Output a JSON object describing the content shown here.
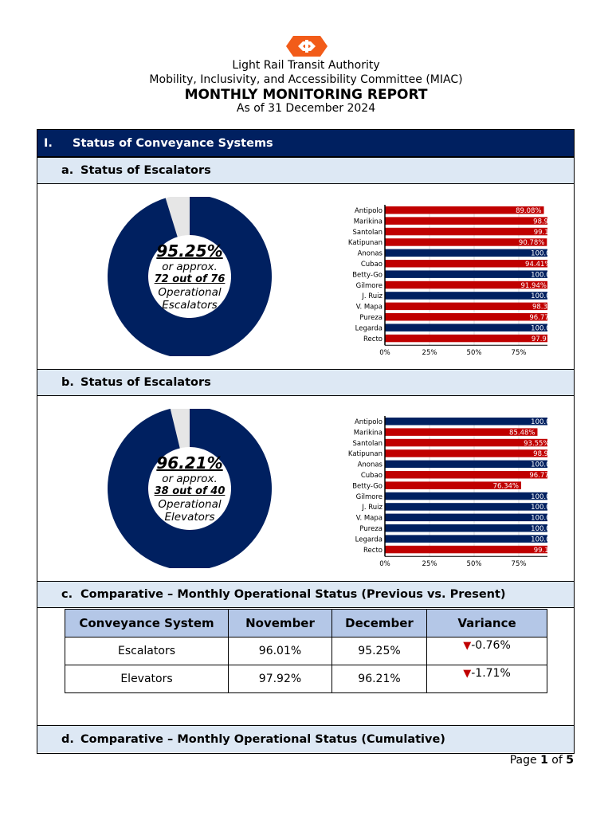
{
  "header": {
    "logo": "LRTA logo",
    "org": "Light Rail Transit Authority",
    "committee": "Mobility, Inclusivity, and Accessibility Committee (MIAC)",
    "title": "MONTHLY MONITORING REPORT",
    "as_of": "As of 31 December 2024"
  },
  "section1": {
    "num": "I.",
    "title": "Status of Conveyance Systems"
  },
  "sub_a": {
    "num": "a.",
    "title": "Status of Escalators",
    "donut": {
      "percent": "95.25%",
      "approx": "or approx.",
      "count": "72 out of 76",
      "line1": "Operational",
      "line2": "Escalators",
      "value": 95.25
    }
  },
  "sub_b": {
    "num": "b.",
    "title": "Status of Escalators",
    "donut": {
      "percent": "96.21%",
      "approx": "or approx.",
      "count": "38 out of 40",
      "line1": "Operational",
      "line2": "Elevators",
      "value": 96.21
    }
  },
  "sub_c": {
    "num": "c.",
    "title": "Comparative – Monthly Operational Status (Previous vs. Present)"
  },
  "sub_d": {
    "num": "d.",
    "title": "Comparative – Monthly Operational Status (Cumulative)"
  },
  "colors": {
    "navy": "#002060",
    "red": "#c00000",
    "gray": "#e6e6e6",
    "light_blue": "#dde8f4",
    "table_header": "#b4c7e7"
  },
  "chart_data": [
    {
      "type": "bar",
      "orientation": "horizontal",
      "categories": [
        "Antipolo",
        "Marikina",
        "Santolan",
        "Katipunan",
        "Anonas",
        "Cubao",
        "Betty-Go",
        "Gilmore",
        "J. Ruiz",
        "V. Mapa",
        "Pureza",
        "Legarda",
        "Recto"
      ],
      "values": [
        89.08,
        98.92,
        99.19,
        90.78,
        100.0,
        94.41,
        100.0,
        91.94,
        100.0,
        98.39,
        96.77,
        100.0,
        97.91
      ],
      "xticks": [
        "0%",
        "25%",
        "50%",
        "75%",
        "100%"
      ],
      "xlim": [
        0,
        100
      ],
      "grid": true
    },
    {
      "type": "bar",
      "orientation": "horizontal",
      "categories": [
        "Antipolo",
        "Marikina",
        "Santolan",
        "Katipunan",
        "Anonas",
        "Cubao",
        "Betty-Go",
        "Gilmore",
        "J. Ruiz",
        "V. Mapa",
        "Pureza",
        "Legarda",
        "Recto"
      ],
      "values": [
        100.0,
        85.48,
        93.55,
        98.92,
        100.0,
        96.77,
        76.34,
        100.0,
        100.0,
        100.0,
        100.0,
        100.0,
        99.19
      ],
      "xticks": [
        "0%",
        "25%",
        "50%",
        "75%",
        "100%"
      ],
      "xlim": [
        0,
        100
      ],
      "grid": true
    }
  ],
  "table": {
    "headers": [
      "Conveyance System",
      "November",
      "December",
      "Variance"
    ],
    "rows": [
      {
        "system": "Escalators",
        "nov": "96.01%",
        "dec": "95.25%",
        "variance": "-0.76%",
        "trend": "down"
      },
      {
        "system": "Elevators",
        "nov": "97.92%",
        "dec": "96.21%",
        "variance": "-1.71%",
        "trend": "down"
      }
    ]
  },
  "footer": {
    "page_label": "Page",
    "page": "1",
    "of": "of",
    "total": "5"
  }
}
